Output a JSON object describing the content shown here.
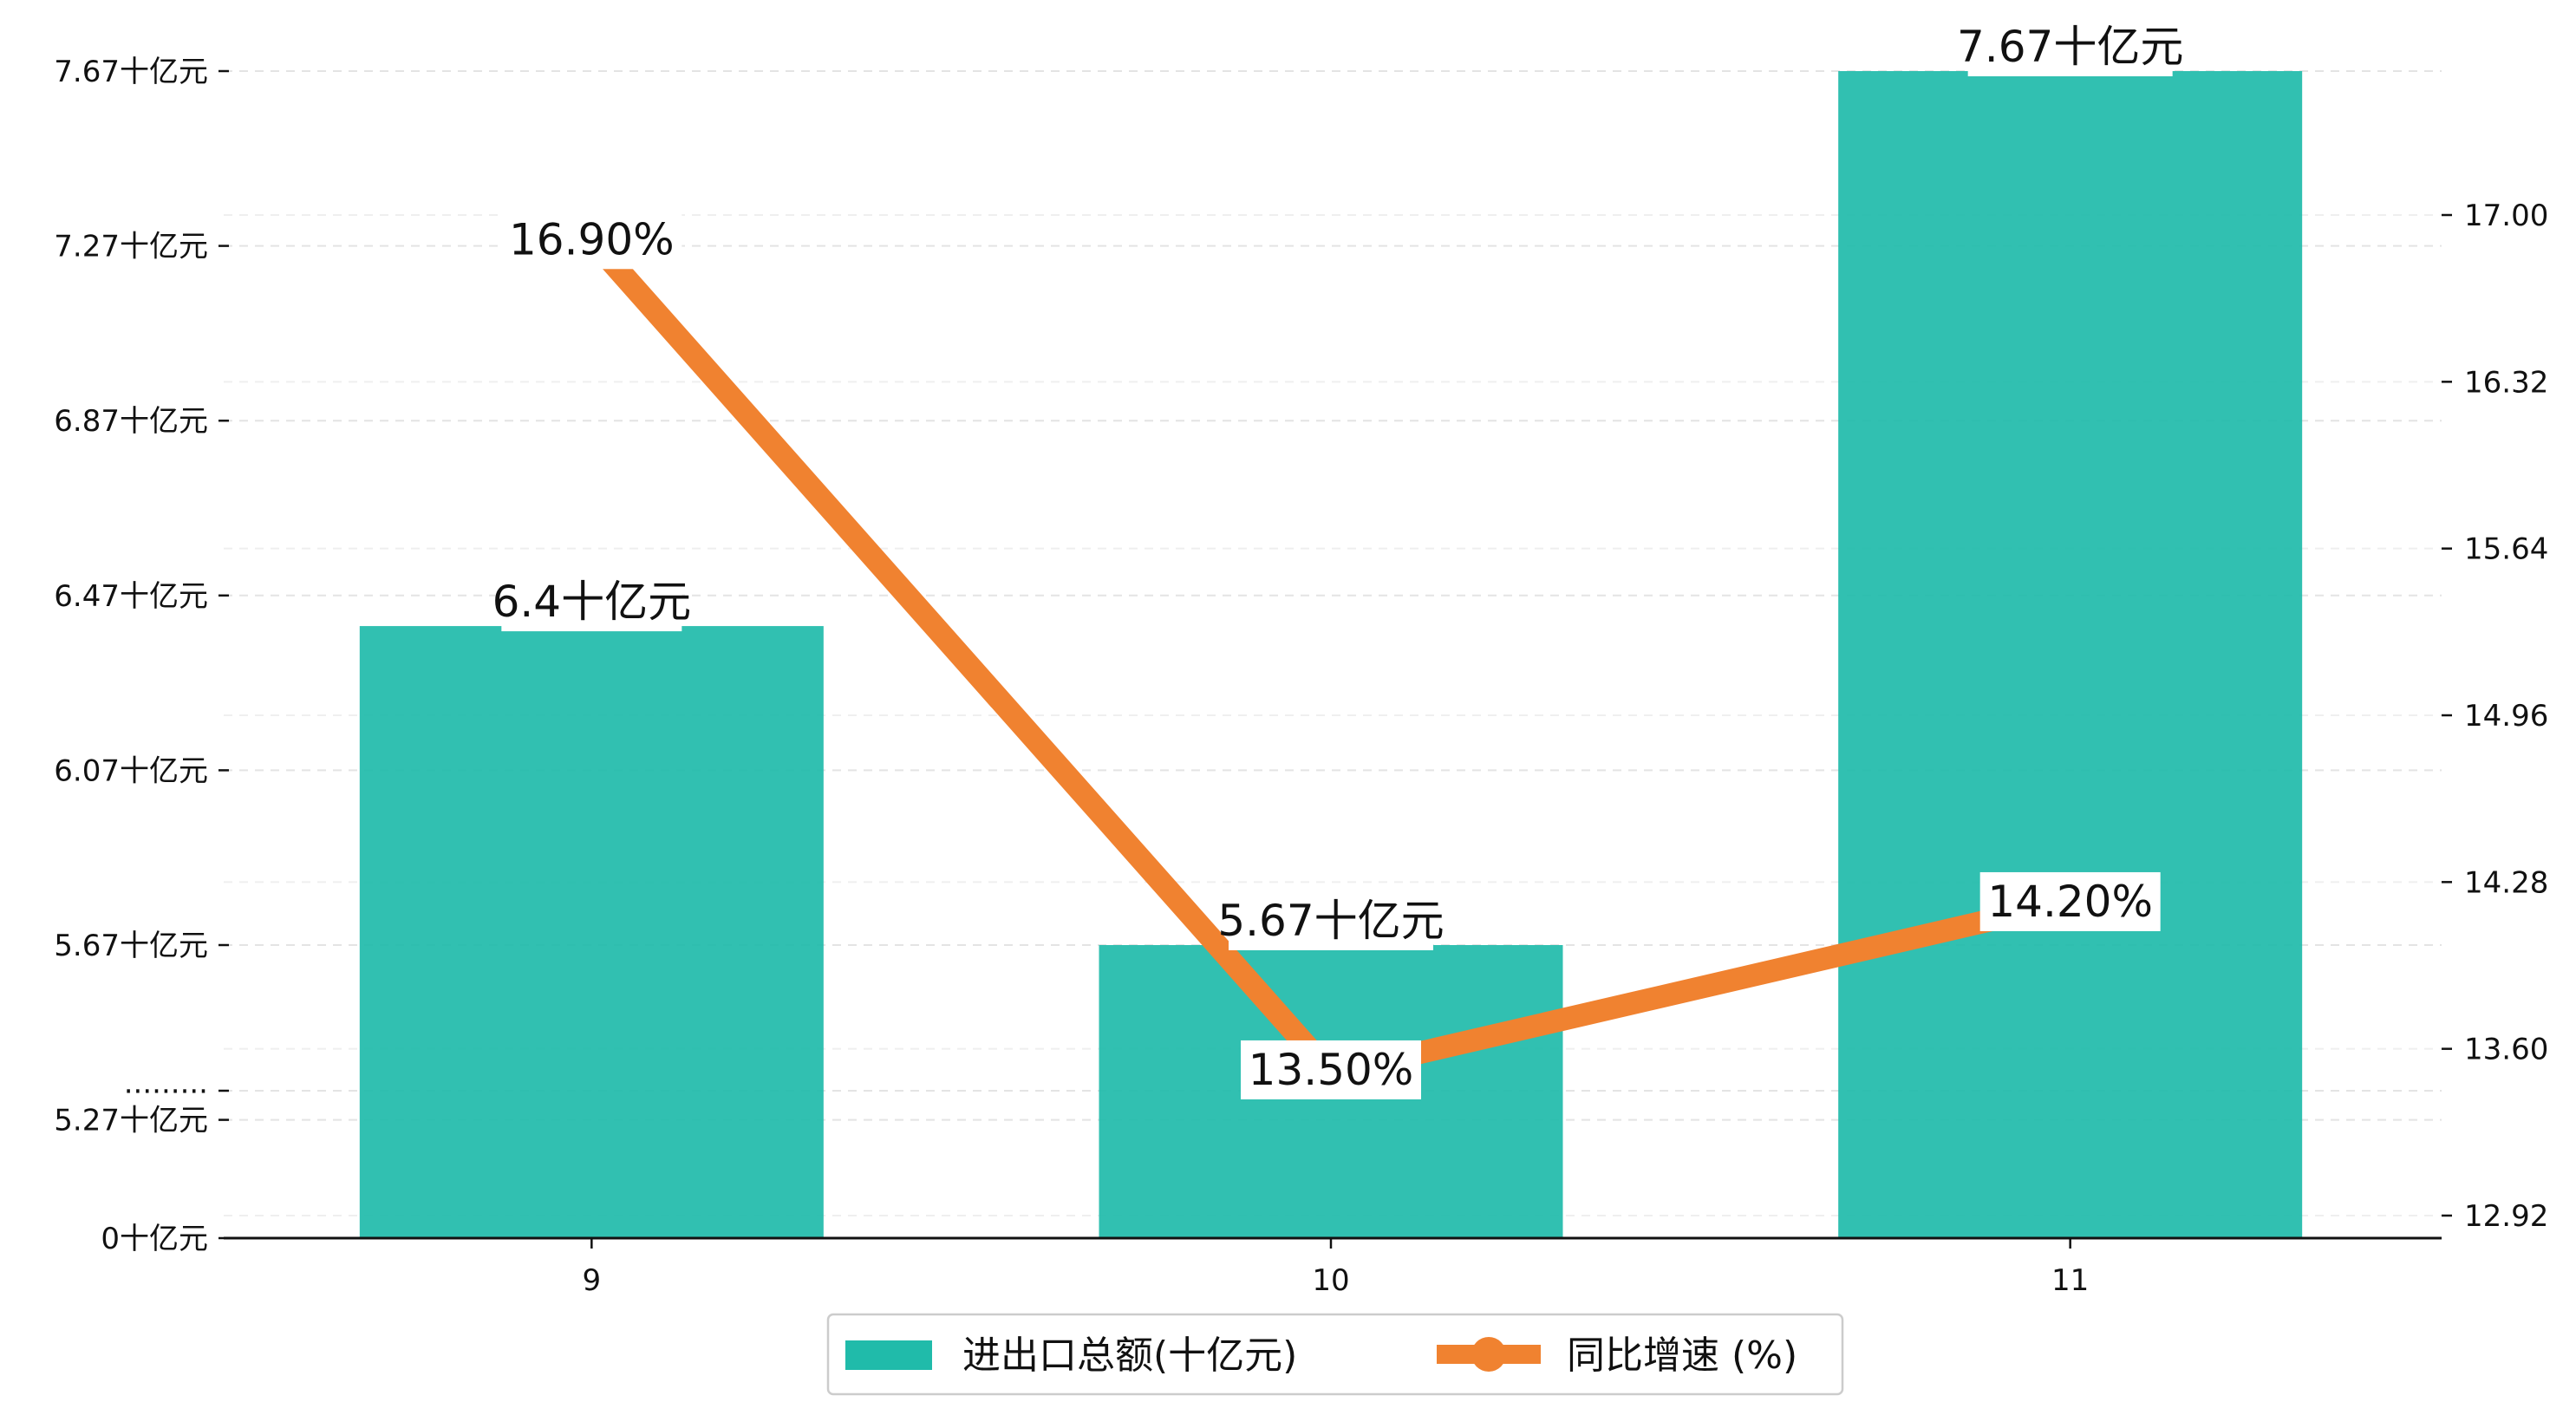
{
  "chart_data": {
    "type": "bar+line",
    "categories": [
      "9",
      "10",
      "11"
    ],
    "series": [
      {
        "name": "进出口总额(十亿元)",
        "type": "bar",
        "axis": "left",
        "values": [
          6.4,
          5.67,
          7.67
        ],
        "labels": [
          "6.4十亿元",
          "5.67十亿元",
          "7.67十亿元"
        ],
        "color": "#20bbaa"
      },
      {
        "name": "同比增速 (%)",
        "type": "line",
        "axis": "right",
        "values": [
          16.9,
          13.5,
          14.2
        ],
        "labels": [
          "16.90%",
          "13.50%",
          "14.20%"
        ],
        "color": "#f08230"
      }
    ],
    "y_left": {
      "broken": true,
      "ticks": [
        {
          "value": 0,
          "label": "0十亿元"
        },
        {
          "value": null,
          "label": "·········"
        },
        {
          "value": 5.27,
          "label": "5.27十亿元"
        },
        {
          "value": 5.67,
          "label": "5.67十亿元"
        },
        {
          "value": 6.07,
          "label": "6.07十亿元"
        },
        {
          "value": 6.47,
          "label": "6.47十亿元"
        },
        {
          "value": 6.87,
          "label": "6.87十亿元"
        },
        {
          "value": 7.27,
          "label": "7.27十亿元"
        },
        {
          "value": 7.67,
          "label": "7.67十亿元"
        }
      ]
    },
    "y_right": {
      "ylim": [
        12.86,
        17.2
      ],
      "ticks": [
        "12.92",
        "13.60",
        "14.28",
        "14.96",
        "15.64",
        "16.32",
        "17.00"
      ]
    },
    "grid": true,
    "legend": "bottom-center"
  }
}
